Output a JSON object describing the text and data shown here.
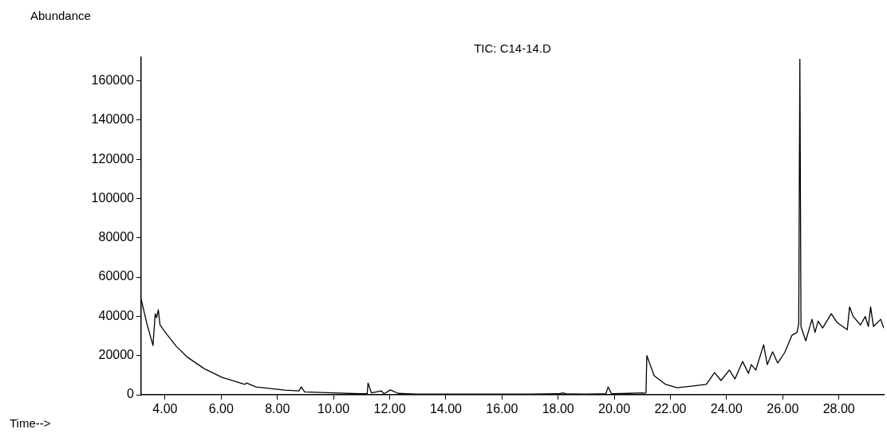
{
  "chart_data": {
    "type": "line",
    "title": "TIC: C14-14.D",
    "xlabel": "Time-->",
    "ylabel": "Abundance",
    "xlim": [
      3.15,
      29.6
    ],
    "ylim": [
      0,
      172000
    ],
    "xticks": [
      {
        "value": 4,
        "label": "4.00"
      },
      {
        "value": 6,
        "label": "6.00"
      },
      {
        "value": 8,
        "label": "8.00"
      },
      {
        "value": 10,
        "label": "10.00"
      },
      {
        "value": 12,
        "label": "12.00"
      },
      {
        "value": 14,
        "label": "14.00"
      },
      {
        "value": 16,
        "label": "16.00"
      },
      {
        "value": 18,
        "label": "18.00"
      },
      {
        "value": 20,
        "label": "20.00"
      },
      {
        "value": 22,
        "label": "22.00"
      },
      {
        "value": 24,
        "label": "24.00"
      },
      {
        "value": 26,
        "label": "26.00"
      },
      {
        "value": 28,
        "label": "28.00"
      }
    ],
    "yticks": [
      0,
      20000,
      40000,
      60000,
      80000,
      100000,
      120000,
      140000,
      160000
    ],
    "grid": false,
    "legend": false,
    "marker": "none",
    "line_style": "solid",
    "series": [
      {
        "color": "#000000",
        "x": [
          3.15,
          3.35,
          3.57,
          3.65,
          3.7,
          3.76,
          3.82,
          4.0,
          4.4,
          4.81,
          5.42,
          6.03,
          6.84,
          6.9,
          7.24,
          8.26,
          8.77,
          8.85,
          8.97,
          10.0,
          11.0,
          11.2,
          11.23,
          11.35,
          11.7,
          11.8,
          12.03,
          12.3,
          13.0,
          14.0,
          15.0,
          16.0,
          17.0,
          18.0,
          18.18,
          18.3,
          19.0,
          19.7,
          19.78,
          19.9,
          20.5,
          21.0,
          21.1,
          21.13,
          21.16,
          21.42,
          21.83,
          22.24,
          22.75,
          23.28,
          23.57,
          23.8,
          24.1,
          24.3,
          24.57,
          24.78,
          24.88,
          25.04,
          25.32,
          25.45,
          25.64,
          25.82,
          26.07,
          26.33,
          26.51,
          26.57,
          26.61,
          26.65,
          26.82,
          27.04,
          27.15,
          27.26,
          27.42,
          27.73,
          27.94,
          28.3,
          28.38,
          28.51,
          28.77,
          28.94,
          29.05,
          29.13,
          29.23,
          29.49,
          29.6
        ],
        "values": [
          48600,
          36400,
          25100,
          41300,
          39300,
          43300,
          35600,
          32000,
          24700,
          19000,
          13100,
          8900,
          5300,
          6000,
          4000,
          2400,
          2000,
          4000,
          1500,
          1000,
          500,
          500,
          6000,
          1000,
          2000,
          500,
          2500,
          700,
          300,
          300,
          300,
          300,
          300,
          500,
          1000,
          400,
          300,
          500,
          4000,
          500,
          700,
          1000,
          800,
          1000,
          20000,
          9700,
          5300,
          3600,
          4400,
          5300,
          11300,
          7300,
          12600,
          8100,
          17000,
          10900,
          15400,
          12600,
          25500,
          15400,
          21900,
          16200,
          21500,
          30400,
          31800,
          36200,
          171000,
          34800,
          27500,
          38500,
          31800,
          37600,
          34000,
          41300,
          36800,
          33200,
          44800,
          39900,
          35600,
          39900,
          34800,
          44800,
          34800,
          38500,
          34000
        ]
      }
    ]
  }
}
